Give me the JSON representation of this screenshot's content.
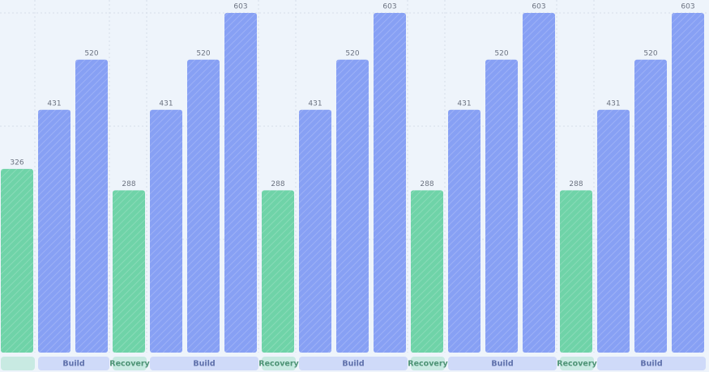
{
  "chart_data": {
    "type": "bar",
    "phases": [
      {
        "label": null,
        "color": "#6fd3a8",
        "values": [
          326
        ]
      },
      {
        "label": "Build",
        "color": "#87a0f4",
        "values": [
          431,
          520
        ]
      },
      {
        "label": "Recovery",
        "color": "#6fd3a8",
        "values": [
          288
        ]
      },
      {
        "label": "Build",
        "color": "#87a0f4",
        "values": [
          431,
          520,
          603
        ]
      },
      {
        "label": "Recovery",
        "color": "#6fd3a8",
        "values": [
          288
        ]
      },
      {
        "label": "Build",
        "color": "#87a0f4",
        "values": [
          431,
          520,
          603
        ]
      },
      {
        "label": "Recovery",
        "color": "#6fd3a8",
        "values": [
          288
        ]
      },
      {
        "label": "Build",
        "color": "#87a0f4",
        "values": [
          431,
          520,
          603
        ]
      },
      {
        "label": "Recovery",
        "color": "#6fd3a8",
        "values": [
          288
        ]
      },
      {
        "label": "Build",
        "color": "#87a0f4",
        "values": [
          431,
          520,
          603
        ]
      }
    ]
  }
}
